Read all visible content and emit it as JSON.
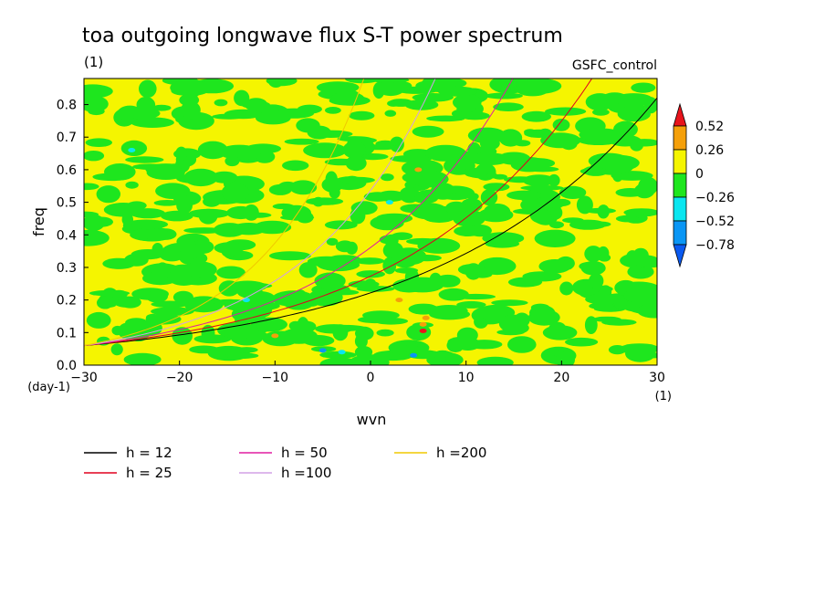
{
  "chart_data": {
    "type": "contour",
    "title": "toa outgoing longwave flux S-T power spectrum",
    "subtitle_left": "(1)",
    "subtitle_right": "GSFC_control",
    "xlabel": "wvn",
    "ylabel": "freq",
    "x_unit_label": "(1)",
    "y_unit_label": "(day-1)",
    "xlim": [
      -30,
      30
    ],
    "ylim": [
      0,
      0.88
    ],
    "x_ticks": [
      -30,
      -20,
      -10,
      0,
      10,
      20,
      30
    ],
    "x_tick_labels": [
      "−30",
      "−20",
      "−10",
      "0",
      "10",
      "20",
      "30"
    ],
    "y_ticks": [
      0,
      0.1,
      0.2,
      0.3,
      0.4,
      0.5,
      0.6,
      0.7,
      0.8
    ],
    "y_tick_labels": [
      "0.0",
      "0.1",
      "0.2",
      "0.3",
      "0.4",
      "0.5",
      "0.6",
      "0.7",
      "0.8"
    ],
    "colorbar": {
      "levels": [
        "0.52",
        "0.26",
        "0",
        "−0.26",
        "−0.52",
        "−0.78"
      ],
      "colors": [
        "#e8141c",
        "#f5a00a",
        "#f5f500",
        "#1ee61e",
        "#0ae6f0",
        "#0a96f5",
        "#0a5af0"
      ]
    },
    "dispersion_curves": [
      {
        "name": "h = 12",
        "color": "#000000",
        "h": 12
      },
      {
        "name": "h = 25",
        "color": "#e0001e",
        "h": 25
      },
      {
        "name": "h = 50",
        "color": "#e01ea0",
        "h": 50
      },
      {
        "name": "h =100",
        "color": "#d2a0e6",
        "h": 100
      },
      {
        "name": "h =200",
        "color": "#f0c800",
        "h": 200
      }
    ]
  }
}
